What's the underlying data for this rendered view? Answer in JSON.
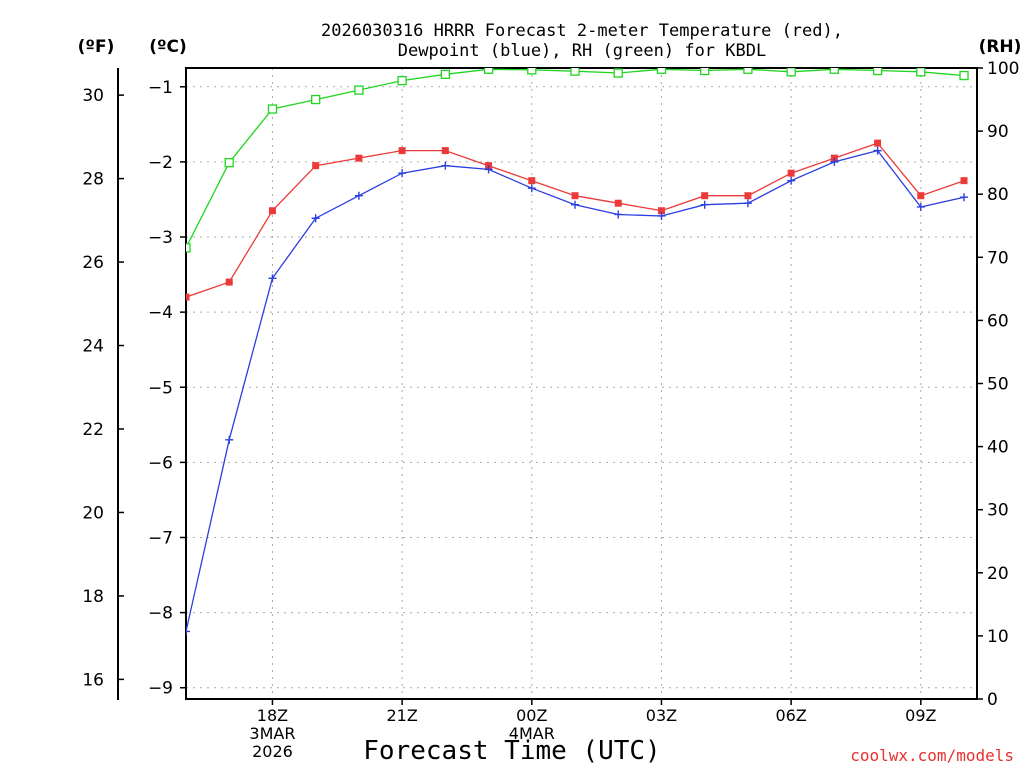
{
  "chart_data": {
    "type": "line",
    "title_lines": [
      "2026030316 HRRR Forecast 2-meter Temperature (red),",
      "Dewpoint (blue), RH (green) for KBDL"
    ],
    "axis_units": {
      "fahrenheit": "(ºF)",
      "celsius": "(ºC)",
      "rh": "(RH)"
    },
    "xlabel": "Forecast Time (UTC)",
    "credit": "coolwx.com/models",
    "x_hours": [
      0,
      1,
      2,
      3,
      4,
      5,
      6,
      7,
      8,
      9,
      10,
      11,
      12,
      13,
      14,
      15,
      16,
      17,
      18
    ],
    "x_ticks": [
      {
        "hour": 2,
        "lines": [
          "18Z",
          "3MAR",
          "2026"
        ]
      },
      {
        "hour": 5,
        "lines": [
          "21Z"
        ]
      },
      {
        "hour": 8,
        "lines": [
          "00Z",
          "4MAR"
        ]
      },
      {
        "hour": 11,
        "lines": [
          "03Z"
        ]
      },
      {
        "hour": 14,
        "lines": [
          "06Z"
        ]
      },
      {
        "hour": 17,
        "lines": [
          "09Z"
        ]
      }
    ],
    "ylim_celsius": [
      -9.15,
      -0.75
    ],
    "celsius_ticks": [
      "−1",
      "−2",
      "−3",
      "−4",
      "−5",
      "−6",
      "−7",
      "−8",
      "−9"
    ],
    "celsius_tick_values": [
      -1,
      -2,
      -3,
      -4,
      -5,
      -6,
      -7,
      -8,
      -9
    ],
    "fahrenheit_ticks": [
      "30",
      "28",
      "26",
      "24",
      "22",
      "20",
      "18",
      "16"
    ],
    "fahrenheit_tick_values": [
      30,
      28,
      26,
      24,
      22,
      20,
      18,
      16
    ],
    "rh_ticks": [
      "100",
      "90",
      "80",
      "70",
      "60",
      "50",
      "40",
      "30",
      "20",
      "10",
      "0"
    ],
    "rh_tick_values": [
      100,
      90,
      80,
      70,
      60,
      50,
      40,
      30,
      20,
      10,
      0
    ],
    "ylim_rh": [
      0,
      100
    ],
    "series": [
      {
        "name": "Temperature",
        "axis": "celsius",
        "color": "#ec3a3a",
        "marker": "filled-square",
        "values": [
          -3.8,
          -3.6,
          -2.65,
          -2.05,
          -1.95,
          -1.85,
          -1.85,
          -2.05,
          -2.25,
          -2.45,
          -2.55,
          -2.65,
          -2.45,
          -2.45,
          -2.15,
          -1.95,
          -1.75,
          -2.45,
          -2.25
        ]
      },
      {
        "name": "Dewpoint",
        "axis": "celsius",
        "color": "#2a3fe0",
        "marker": "plus",
        "values": [
          -8.25,
          -5.7,
          -3.55,
          -2.75,
          -2.45,
          -2.15,
          -2.05,
          -2.1,
          -2.35,
          -2.57,
          -2.7,
          -2.72,
          -2.57,
          -2.55,
          -2.25,
          -2.0,
          -1.85,
          -2.6,
          -2.47
        ]
      },
      {
        "name": "RH",
        "axis": "rh",
        "color": "#1fd61f",
        "marker": "open-square",
        "values": [
          71.5,
          85,
          93.5,
          95,
          96.5,
          98,
          99,
          99.8,
          99.7,
          99.5,
          99.2,
          99.8,
          99.6,
          99.8,
          99.4,
          99.8,
          99.6,
          99.4,
          98.8
        ]
      }
    ]
  }
}
